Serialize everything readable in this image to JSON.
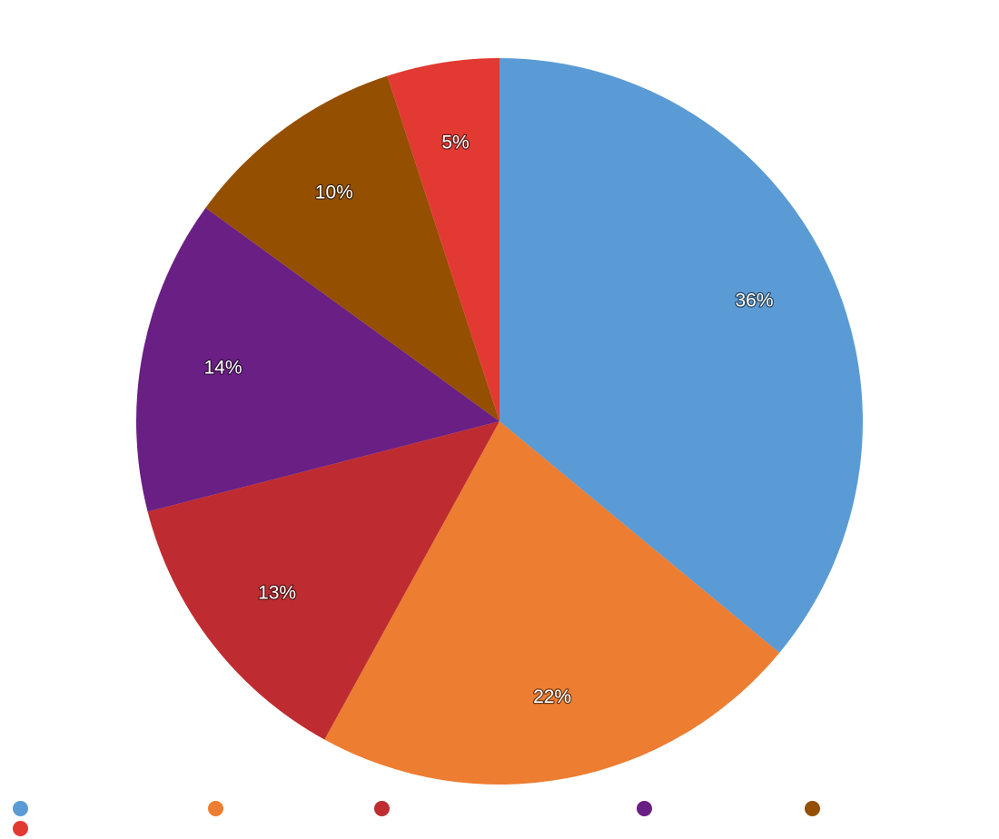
{
  "chart_data": {
    "type": "pie",
    "slices": [
      {
        "value": 36,
        "label": "36%",
        "color": "#5b9bd5"
      },
      {
        "value": 22,
        "label": "22%",
        "color": "#ed7d31"
      },
      {
        "value": 13,
        "label": "13%",
        "color": "#be2c31"
      },
      {
        "value": 14,
        "label": "14%",
        "color": "#6a1f85"
      },
      {
        "value": 10,
        "label": "10%",
        "color": "#954f00"
      },
      {
        "value": 5,
        "label": "5%",
        "color": "#e23a33"
      }
    ],
    "start": "top",
    "direction": "clockwise",
    "legend_position": "bottom",
    "legend_labels_visible": false
  }
}
